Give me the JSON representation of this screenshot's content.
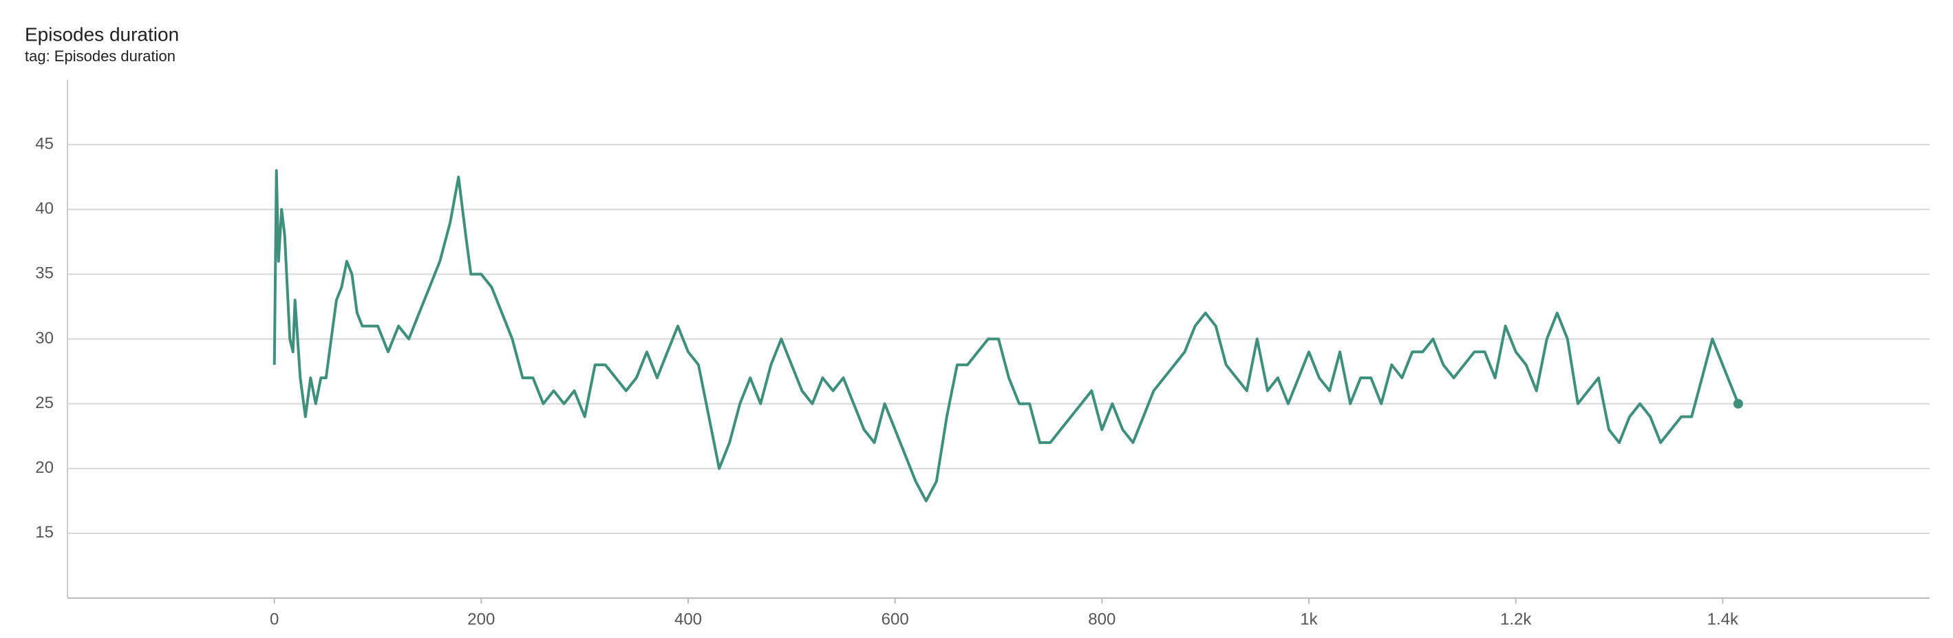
{
  "chart_data": {
    "type": "line",
    "title": "Episodes duration",
    "subtitle": "tag: Episodes duration",
    "x": [
      0,
      2,
      4,
      7,
      10,
      15,
      18,
      20,
      25,
      30,
      35,
      40,
      45,
      50,
      55,
      60,
      65,
      70,
      75,
      80,
      85,
      90,
      100,
      110,
      120,
      130,
      140,
      150,
      160,
      170,
      178,
      185,
      190,
      200,
      210,
      220,
      230,
      240,
      250,
      260,
      270,
      280,
      290,
      300,
      310,
      320,
      330,
      340,
      350,
      360,
      370,
      380,
      390,
      400,
      410,
      420,
      430,
      440,
      450,
      460,
      470,
      480,
      490,
      500,
      510,
      520,
      530,
      540,
      550,
      560,
      570,
      580,
      590,
      600,
      610,
      620,
      630,
      640,
      650,
      660,
      670,
      680,
      690,
      700,
      710,
      720,
      730,
      740,
      750,
      760,
      770,
      780,
      790,
      800,
      810,
      820,
      830,
      840,
      850,
      860,
      870,
      880,
      890,
      900,
      910,
      920,
      930,
      940,
      950,
      960,
      970,
      980,
      990,
      1000,
      1010,
      1020,
      1030,
      1040,
      1050,
      1060,
      1070,
      1080,
      1090,
      1100,
      1110,
      1120,
      1130,
      1140,
      1150,
      1160,
      1170,
      1180,
      1190,
      1200,
      1210,
      1220,
      1230,
      1240,
      1250,
      1260,
      1270,
      1280,
      1290,
      1300,
      1310,
      1320,
      1330,
      1340,
      1350,
      1360,
      1370,
      1380,
      1390,
      1400,
      1410,
      1415
    ],
    "series": [
      {
        "name": "Episodes duration",
        "color": "#3f8f7d",
        "values": [
          28,
          43,
          36,
          40,
          38,
          30,
          29,
          33,
          27,
          24,
          27,
          25,
          27,
          27,
          30,
          33,
          34,
          36,
          35,
          32,
          31,
          31,
          31,
          29,
          31,
          30,
          32,
          34,
          36,
          39,
          42.5,
          38,
          35,
          35,
          34,
          32,
          30,
          27,
          27,
          25,
          26,
          25,
          26,
          24,
          28,
          28,
          27,
          26,
          27,
          29,
          27,
          29,
          31,
          29,
          28,
          24,
          20,
          22,
          25,
          27,
          25,
          28,
          30,
          28,
          26,
          25,
          27,
          26,
          27,
          25,
          23,
          22,
          25,
          23,
          21,
          19,
          17.5,
          19,
          24,
          28,
          28,
          29,
          30,
          30,
          27,
          25,
          25,
          22,
          22,
          23,
          24,
          25,
          26,
          23,
          25,
          23,
          22,
          24,
          26,
          27,
          28,
          29,
          31,
          32,
          31,
          28,
          27,
          26,
          30,
          26,
          27,
          25,
          27,
          29,
          27,
          26,
          29,
          25,
          27,
          27,
          25,
          28,
          27,
          29,
          29,
          30,
          28,
          27,
          28,
          29,
          29,
          27,
          31,
          29,
          28,
          26,
          30,
          32,
          30,
          25,
          26,
          27,
          23,
          22,
          24,
          25,
          24,
          22,
          23,
          24,
          24,
          27,
          30,
          28,
          26,
          25
        ]
      }
    ],
    "xlim": [
      -200,
      1600
    ],
    "xticks": [
      0,
      200,
      400,
      600,
      800,
      {
        "value": 1000,
        "label": "1k"
      },
      {
        "value": 1200,
        "label": "1.2k"
      },
      {
        "value": 1400,
        "label": "1.4k"
      }
    ],
    "ylim": [
      10,
      50
    ],
    "yticks": [
      15,
      20,
      25,
      30,
      35,
      40,
      45
    ],
    "grid": true
  }
}
